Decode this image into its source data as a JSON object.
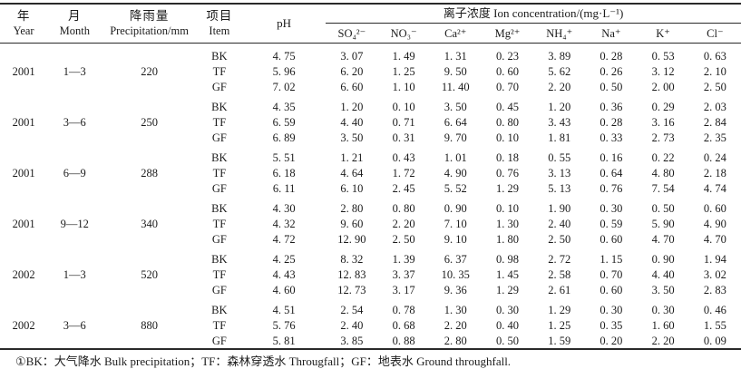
{
  "table": {
    "headers": {
      "year_zh": "年",
      "year_en": "Year",
      "month_zh": "月",
      "month_en": "Month",
      "precip_zh": "降雨量",
      "precip_en": "Precipitation/mm",
      "item_zh": "项目",
      "item_en": "Item",
      "ph": "pH",
      "ion_group": "离子浓度 Ion concentration/(mg·L⁻¹)",
      "ions": [
        "SO₄²⁻",
        "NO₃⁻",
        "Ca²⁺",
        "Mg²⁺",
        "NH₄⁺",
        "Na⁺",
        "K⁺",
        "Cl⁻"
      ]
    },
    "groups": [
      {
        "year": "2001",
        "month": "1—3",
        "precipitation": "220",
        "rows": [
          {
            "item": "BK",
            "ph": "4. 75",
            "values": [
              "3. 07",
              "1. 49",
              "1. 31",
              "0. 23",
              "3. 89",
              "0. 28",
              "0. 53",
              "0. 63"
            ]
          },
          {
            "item": "TF",
            "ph": "5. 96",
            "values": [
              "6. 20",
              "1. 25",
              "9. 50",
              "0. 60",
              "5. 62",
              "0. 26",
              "3. 12",
              "2. 10"
            ]
          },
          {
            "item": "GF",
            "ph": "7. 02",
            "values": [
              "6. 60",
              "1. 10",
              "11. 40",
              "0. 70",
              "2. 20",
              "0. 50",
              "2. 00",
              "2. 50"
            ]
          }
        ]
      },
      {
        "year": "2001",
        "month": "3—6",
        "precipitation": "250",
        "rows": [
          {
            "item": "BK",
            "ph": "4. 35",
            "values": [
              "1. 20",
              "0. 10",
              "3. 50",
              "0. 45",
              "1. 20",
              "0. 36",
              "0. 29",
              "2. 03"
            ]
          },
          {
            "item": "TF",
            "ph": "6. 59",
            "values": [
              "4. 40",
              "0. 71",
              "6. 64",
              "0. 80",
              "3. 43",
              "0. 28",
              "3. 16",
              "2. 84"
            ]
          },
          {
            "item": "GF",
            "ph": "6. 89",
            "values": [
              "3. 50",
              "0. 31",
              "9. 70",
              "0. 10",
              "1. 81",
              "0. 33",
              "2. 73",
              "2. 35"
            ]
          }
        ]
      },
      {
        "year": "2001",
        "month": "6—9",
        "precipitation": "288",
        "rows": [
          {
            "item": "BK",
            "ph": "5. 51",
            "values": [
              "1. 21",
              "0. 43",
              "1. 01",
              "0. 18",
              "0. 55",
              "0. 16",
              "0. 22",
              "0. 24"
            ]
          },
          {
            "item": "TF",
            "ph": "6. 18",
            "values": [
              "4. 64",
              "1. 72",
              "4. 90",
              "0. 76",
              "3. 13",
              "0. 64",
              "4. 80",
              "2. 18"
            ]
          },
          {
            "item": "GF",
            "ph": "6. 11",
            "values": [
              "6. 10",
              "2. 45",
              "5. 52",
              "1. 29",
              "5. 13",
              "0. 76",
              "7. 54",
              "4. 74"
            ]
          }
        ]
      },
      {
        "year": "2001",
        "month": "9—12",
        "precipitation": "340",
        "rows": [
          {
            "item": "BK",
            "ph": "4. 30",
            "values": [
              "2. 80",
              "0. 80",
              "0. 90",
              "0. 10",
              "1. 90",
              "0. 30",
              "0. 50",
              "0. 60"
            ]
          },
          {
            "item": "TF",
            "ph": "4. 32",
            "values": [
              "9. 60",
              "2. 20",
              "7. 10",
              "1. 30",
              "2. 40",
              "0. 59",
              "5. 90",
              "4. 90"
            ]
          },
          {
            "item": "GF",
            "ph": "4. 72",
            "values": [
              "12. 90",
              "2. 50",
              "9. 10",
              "1. 80",
              "2. 50",
              "0. 60",
              "4. 70",
              "4. 70"
            ]
          }
        ]
      },
      {
        "year": "2002",
        "month": "1—3",
        "precipitation": "520",
        "rows": [
          {
            "item": "BK",
            "ph": "4. 25",
            "values": [
              "8. 32",
              "1. 39",
              "6. 37",
              "0. 98",
              "2. 72",
              "1. 15",
              "0. 90",
              "1. 94"
            ]
          },
          {
            "item": "TF",
            "ph": "4. 43",
            "values": [
              "12. 83",
              "3. 37",
              "10. 35",
              "1. 45",
              "2. 58",
              "0. 70",
              "4. 40",
              "3. 02"
            ]
          },
          {
            "item": "GF",
            "ph": "4. 60",
            "values": [
              "12. 73",
              "3. 17",
              "9. 36",
              "1. 29",
              "2. 61",
              "0. 60",
              "3. 50",
              "2. 83"
            ]
          }
        ]
      },
      {
        "year": "2002",
        "month": "3—6",
        "precipitation": "880",
        "rows": [
          {
            "item": "BK",
            "ph": "4. 51",
            "values": [
              "2. 54",
              "0. 78",
              "1. 30",
              "0. 30",
              "1. 29",
              "0. 30",
              "0. 30",
              "0. 46"
            ]
          },
          {
            "item": "TF",
            "ph": "5. 76",
            "values": [
              "2. 40",
              "0. 68",
              "2. 20",
              "0. 40",
              "1. 25",
              "0. 35",
              "1. 60",
              "1. 55"
            ]
          },
          {
            "item": "GF",
            "ph": "5. 81",
            "values": [
              "3. 85",
              "0. 88",
              "2. 80",
              "0. 50",
              "1. 59",
              "0. 20",
              "2. 20",
              "0. 09"
            ]
          }
        ]
      }
    ]
  },
  "footnote": "①BK：大气降水 Bulk precipitation；TF：森林穿透水 Througfall；GF：地表水 Ground throughfall."
}
